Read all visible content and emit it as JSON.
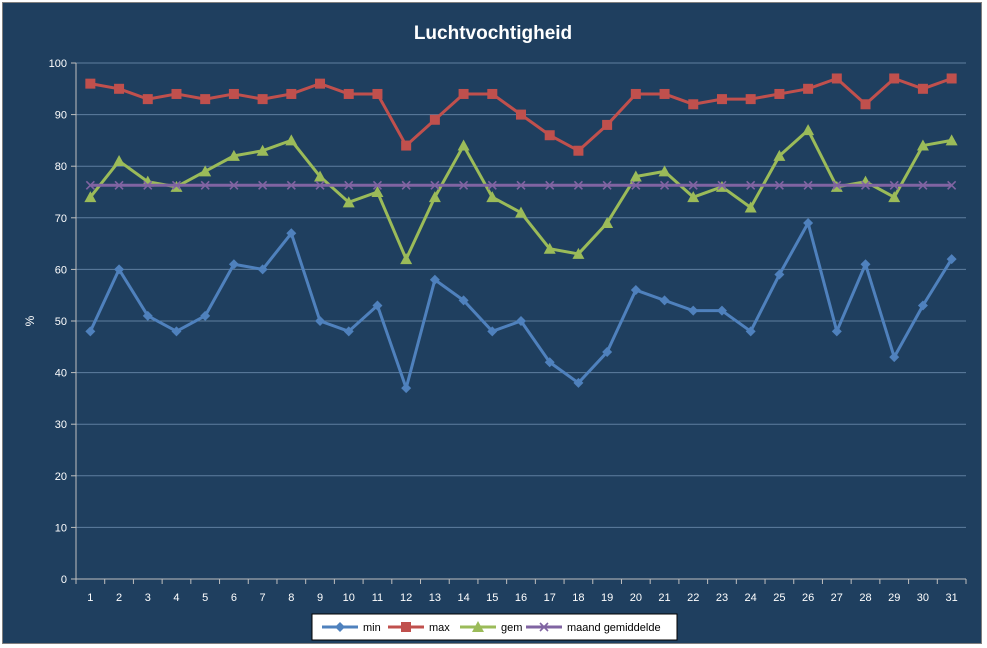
{
  "chart_data": {
    "type": "line",
    "title": "Luchtvochtigheid",
    "xlabel": "",
    "ylabel": "%",
    "ylim": [
      0,
      100
    ],
    "yticks": [
      0,
      10,
      20,
      30,
      40,
      50,
      60,
      70,
      80,
      90,
      100
    ],
    "x": [
      1,
      2,
      3,
      4,
      5,
      6,
      7,
      8,
      9,
      10,
      11,
      12,
      13,
      14,
      15,
      16,
      17,
      18,
      19,
      20,
      21,
      22,
      23,
      24,
      25,
      26,
      27,
      28,
      29,
      30,
      31
    ],
    "grid": true,
    "legend_position": "bottom",
    "series": [
      {
        "name": "min",
        "color": "#4f81bd",
        "marker": "diamond",
        "values": [
          48,
          60,
          51,
          48,
          51,
          61,
          60,
          67,
          50,
          48,
          53,
          37,
          58,
          54,
          48,
          50,
          42,
          38,
          44,
          56,
          54,
          52,
          52,
          48,
          59,
          69,
          48,
          61,
          43,
          53,
          62
        ]
      },
      {
        "name": "max",
        "color": "#c0504d",
        "marker": "square",
        "values": [
          96,
          95,
          93,
          94,
          93,
          94,
          93,
          94,
          96,
          94,
          94,
          84,
          89,
          94,
          94,
          90,
          86,
          83,
          88,
          94,
          94,
          92,
          93,
          93,
          94,
          95,
          97,
          92,
          97,
          95,
          97
        ]
      },
      {
        "name": "gem",
        "color": "#9bbb59",
        "marker": "triangle",
        "values": [
          74,
          81,
          77,
          76,
          79,
          82,
          83,
          85,
          78,
          73,
          75,
          62,
          74,
          84,
          74,
          71,
          64,
          63,
          69,
          78,
          79,
          74,
          76,
          72,
          82,
          87,
          76,
          77,
          74,
          84,
          85
        ]
      },
      {
        "name": "maand gemiddelde",
        "color": "#8064a2",
        "marker": "x",
        "values": [
          76.3,
          76.3,
          76.3,
          76.3,
          76.3,
          76.3,
          76.3,
          76.3,
          76.3,
          76.3,
          76.3,
          76.3,
          76.3,
          76.3,
          76.3,
          76.3,
          76.3,
          76.3,
          76.3,
          76.3,
          76.3,
          76.3,
          76.3,
          76.3,
          76.3,
          76.3,
          76.3,
          76.3,
          76.3,
          76.3,
          76.3
        ]
      }
    ]
  }
}
